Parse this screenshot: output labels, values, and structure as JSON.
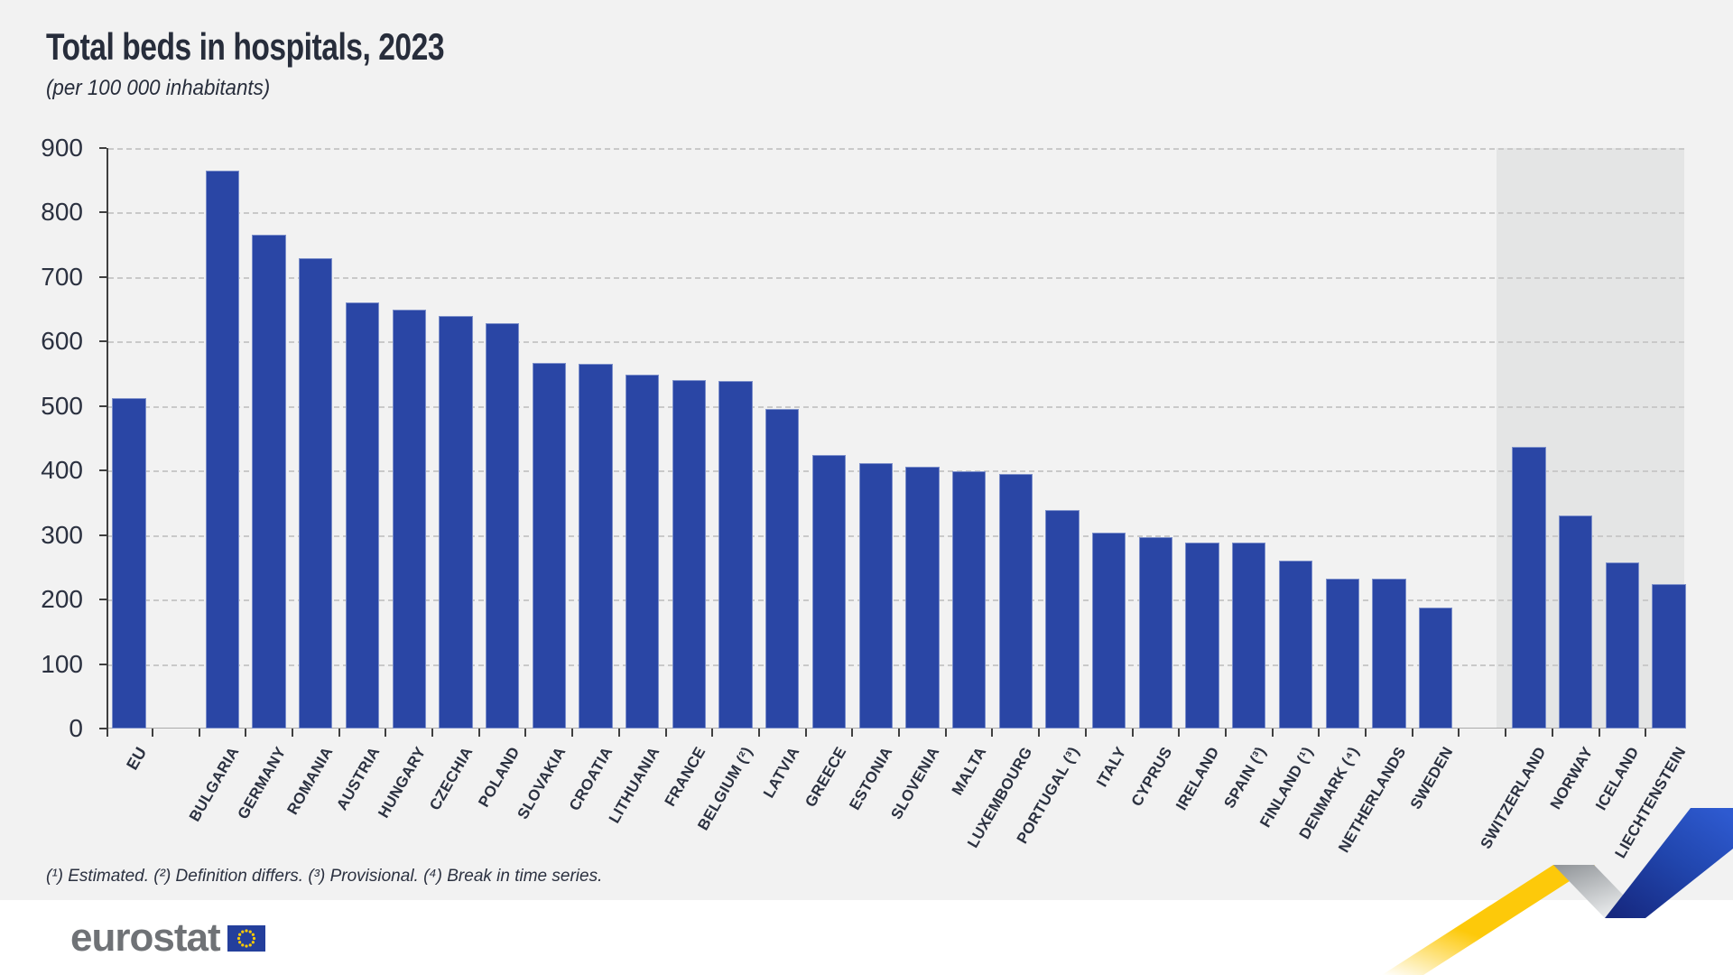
{
  "header": {
    "title": "Total beds in hospitals, 2023",
    "subtitle": "(per 100 000 inhabitants)"
  },
  "footnote_line": "(¹) Estimated. (²) Definition differs. (³) Provisional. (⁴) Break in time series.",
  "footnotes": {
    "1": "Estimated",
    "2": "Definition differs",
    "3": "Provisional",
    "4": "Break in time series"
  },
  "branding": {
    "logo_text": "eurostat",
    "flag_icon": "eu-flag-icon"
  },
  "colors": {
    "background": "#f2f2f2",
    "footer_background": "#ffffff",
    "bar": "#2a46a5",
    "efta_band": "#e4e5e5",
    "gridline": "#c9c9c9",
    "text": "#2b3140",
    "logo_gray": "#6f7276",
    "eu_flag_blue": "#243f9c",
    "eu_flag_stars": "#ffcc00",
    "ribbon_yellow": "#fdc90a",
    "ribbon_blue": "#2146ae",
    "ribbon_gray": "#9fa3a7"
  },
  "chart_data": {
    "type": "bar",
    "title": "Total beds in hospitals, 2023",
    "unit": "per 100 000 inhabitants",
    "xlabel": "",
    "ylabel": "",
    "ylim": [
      0,
      900
    ],
    "yticks": [
      0,
      100,
      200,
      300,
      400,
      500,
      600,
      700,
      800,
      900
    ],
    "grid": "horizontal-dashed",
    "legend": "none",
    "highlight_band": {
      "applies_to": "EFTA countries (Switzerland to Liechtenstein)"
    },
    "bars": [
      {
        "label": "EU",
        "value": 513,
        "group": "eu-aggregate"
      },
      {
        "label": "BULGARIA",
        "value": 865,
        "group": "eu"
      },
      {
        "label": "GERMANY",
        "value": 766,
        "group": "eu"
      },
      {
        "label": "ROMANIA",
        "value": 729,
        "group": "eu"
      },
      {
        "label": "AUSTRIA",
        "value": 661,
        "group": "eu"
      },
      {
        "label": "HUNGARY",
        "value": 650,
        "group": "eu"
      },
      {
        "label": "CZECHIA",
        "value": 640,
        "group": "eu"
      },
      {
        "label": "POLAND",
        "value": 628,
        "group": "eu"
      },
      {
        "label": "SLOVAKIA",
        "value": 567,
        "group": "eu"
      },
      {
        "label": "CROATIA",
        "value": 566,
        "group": "eu"
      },
      {
        "label": "LITHUANIA",
        "value": 549,
        "group": "eu"
      },
      {
        "label": "FRANCE",
        "value": 541,
        "group": "eu"
      },
      {
        "label": "BELGIUM (²)",
        "value": 539,
        "group": "eu"
      },
      {
        "label": "LATVIA",
        "value": 495,
        "group": "eu"
      },
      {
        "label": "GREECE",
        "value": 424,
        "group": "eu"
      },
      {
        "label": "ESTONIA",
        "value": 412,
        "group": "eu"
      },
      {
        "label": "SLOVENIA",
        "value": 406,
        "group": "eu"
      },
      {
        "label": "MALTA",
        "value": 399,
        "group": "eu"
      },
      {
        "label": "LUXEMBOURG",
        "value": 395,
        "group": "eu"
      },
      {
        "label": "PORTUGAL (³)",
        "value": 339,
        "group": "eu"
      },
      {
        "label": "ITALY",
        "value": 304,
        "group": "eu"
      },
      {
        "label": "CYPRUS",
        "value": 297,
        "group": "eu"
      },
      {
        "label": "IRELAND",
        "value": 289,
        "group": "eu"
      },
      {
        "label": "SPAIN (³)",
        "value": 288,
        "group": "eu"
      },
      {
        "label": "FINLAND (¹)",
        "value": 260,
        "group": "eu"
      },
      {
        "label": "DENMARK (⁴)",
        "value": 233,
        "group": "eu"
      },
      {
        "label": "NETHERLANDS",
        "value": 232,
        "group": "eu"
      },
      {
        "label": "SWEDEN",
        "value": 188,
        "group": "eu"
      },
      {
        "label": "SWITZERLAND",
        "value": 437,
        "group": "efta"
      },
      {
        "label": "NORWAY",
        "value": 330,
        "group": "efta"
      },
      {
        "label": "ICELAND",
        "value": 258,
        "group": "efta"
      },
      {
        "label": "LIECHTENSTEIN",
        "value": 224,
        "group": "efta"
      }
    ]
  }
}
